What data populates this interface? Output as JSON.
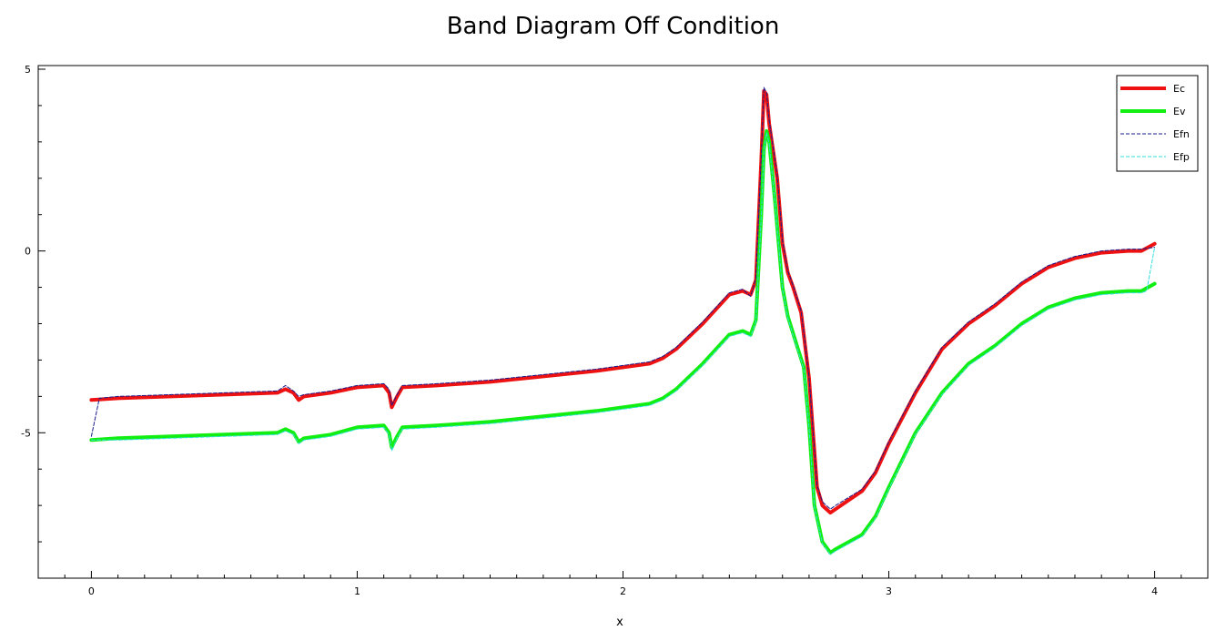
{
  "chart_data": {
    "type": "line",
    "title": "Band Diagram Off Condition",
    "xlabel": "x",
    "ylabel": "",
    "xlim": [
      -0.2,
      4.2
    ],
    "ylim": [
      -9,
      5.1
    ],
    "xticks": [
      0,
      1,
      2,
      3,
      4
    ],
    "yticks": [
      5,
      0,
      -5
    ],
    "grid": false,
    "legend_position": "top-right",
    "series": [
      {
        "name": "Ec",
        "color": "#ee1111",
        "style": "solid-thick",
        "x": [
          0,
          0.1,
          0.3,
          0.5,
          0.7,
          0.73,
          0.76,
          0.78,
          0.8,
          0.9,
          1.0,
          1.1,
          1.12,
          1.13,
          1.15,
          1.17,
          1.3,
          1.5,
          1.7,
          1.9,
          2.1,
          2.15,
          2.2,
          2.3,
          2.4,
          2.45,
          2.48,
          2.5,
          2.52,
          2.53,
          2.54,
          2.55,
          2.58,
          2.6,
          2.62,
          2.64,
          2.67,
          2.7,
          2.73,
          2.75,
          2.78,
          2.8,
          2.9,
          2.95,
          3.0,
          3.1,
          3.2,
          3.3,
          3.4,
          3.5,
          3.6,
          3.7,
          3.8,
          3.9,
          3.95,
          4.0
        ],
        "y": [
          -4.1,
          -4.05,
          -4.0,
          -3.95,
          -3.9,
          -3.8,
          -3.9,
          -4.1,
          -4.0,
          -3.9,
          -3.75,
          -3.7,
          -3.9,
          -4.3,
          -4.0,
          -3.75,
          -3.7,
          -3.6,
          -3.45,
          -3.3,
          -3.1,
          -2.95,
          -2.7,
          -2.0,
          -1.2,
          -1.1,
          -1.2,
          -0.8,
          2.5,
          4.4,
          4.3,
          3.5,
          2.0,
          0.2,
          -0.6,
          -1.0,
          -1.7,
          -3.5,
          -6.5,
          -7.0,
          -7.2,
          -7.1,
          -6.6,
          -6.1,
          -5.3,
          -3.9,
          -2.7,
          -2.0,
          -1.5,
          -0.9,
          -0.45,
          -0.2,
          -0.05,
          0.0,
          0.0,
          0.2
        ]
      },
      {
        "name": "Ev",
        "color": "#11ee11",
        "style": "solid-thick",
        "x": [
          0,
          0.1,
          0.3,
          0.5,
          0.7,
          0.73,
          0.76,
          0.78,
          0.8,
          0.9,
          1.0,
          1.1,
          1.12,
          1.13,
          1.15,
          1.17,
          1.3,
          1.5,
          1.7,
          1.9,
          2.1,
          2.15,
          2.2,
          2.3,
          2.4,
          2.45,
          2.48,
          2.5,
          2.52,
          2.53,
          2.54,
          2.55,
          2.57,
          2.6,
          2.62,
          2.65,
          2.68,
          2.7,
          2.72,
          2.75,
          2.78,
          2.8,
          2.9,
          2.95,
          3.0,
          3.1,
          3.2,
          3.3,
          3.4,
          3.5,
          3.6,
          3.7,
          3.8,
          3.9,
          3.95,
          4.0
        ],
        "y": [
          -5.2,
          -5.15,
          -5.1,
          -5.05,
          -5.0,
          -4.9,
          -5.0,
          -5.25,
          -5.15,
          -5.05,
          -4.85,
          -4.8,
          -5.0,
          -5.4,
          -5.1,
          -4.85,
          -4.8,
          -4.7,
          -4.55,
          -4.4,
          -4.2,
          -4.05,
          -3.8,
          -3.1,
          -2.3,
          -2.2,
          -2.3,
          -1.9,
          1.0,
          2.8,
          3.3,
          3.0,
          1.5,
          -1.0,
          -1.8,
          -2.5,
          -3.2,
          -4.8,
          -7.0,
          -8.0,
          -8.3,
          -8.2,
          -7.8,
          -7.3,
          -6.5,
          -5.0,
          -3.9,
          -3.1,
          -2.6,
          -2.0,
          -1.55,
          -1.3,
          -1.15,
          -1.1,
          -1.1,
          -0.9
        ]
      },
      {
        "name": "Efn",
        "color": "#1a1a8c",
        "style": "dashed-thin",
        "x": [
          0,
          0.03,
          0.1,
          0.3,
          0.5,
          0.7,
          0.73,
          0.76,
          0.78,
          0.8,
          0.9,
          1.0,
          1.1,
          1.12,
          1.13,
          1.15,
          1.17,
          1.3,
          1.5,
          1.7,
          1.9,
          2.1,
          2.15,
          2.2,
          2.3,
          2.4,
          2.45,
          2.48,
          2.5,
          2.52,
          2.53,
          2.54,
          2.55,
          2.58,
          2.6,
          2.62,
          2.64,
          2.67,
          2.7,
          2.73,
          2.75,
          2.78,
          2.8,
          2.9,
          2.95,
          3.0,
          3.1,
          3.2,
          3.3,
          3.4,
          3.5,
          3.6,
          3.7,
          3.8,
          3.9,
          3.95,
          4.0
        ],
        "y": [
          -5.1,
          -4.05,
          -4.0,
          -3.95,
          -3.9,
          -3.85,
          -3.7,
          -3.85,
          -4.0,
          -3.95,
          -3.85,
          -3.7,
          -3.65,
          -3.8,
          -4.25,
          -3.95,
          -3.7,
          -3.65,
          -3.55,
          -3.4,
          -3.25,
          -3.05,
          -2.9,
          -2.65,
          -1.95,
          -1.15,
          -1.05,
          -1.25,
          -0.75,
          2.6,
          4.5,
          4.35,
          3.6,
          2.1,
          0.3,
          -0.55,
          -0.95,
          -1.65,
          -3.45,
          -6.45,
          -6.9,
          -7.1,
          -7.0,
          -6.55,
          -6.05,
          -5.25,
          -3.85,
          -2.65,
          -1.95,
          -1.45,
          -0.85,
          -0.4,
          -0.15,
          0.0,
          0.05,
          0.05,
          0.1
        ]
      },
      {
        "name": "Efp",
        "color": "#33dddd",
        "style": "dashed-thin",
        "x": [
          0,
          0.1,
          0.3,
          0.5,
          0.7,
          0.73,
          0.76,
          0.78,
          0.8,
          0.9,
          1.0,
          1.1,
          1.12,
          1.13,
          1.15,
          1.17,
          1.3,
          1.5,
          1.7,
          1.9,
          2.1,
          2.15,
          2.2,
          2.3,
          2.4,
          2.45,
          2.48,
          2.5,
          2.52,
          2.53,
          2.54,
          2.55,
          2.57,
          2.6,
          2.62,
          2.65,
          2.68,
          2.7,
          2.72,
          2.75,
          2.78,
          2.8,
          2.9,
          2.95,
          3.0,
          3.1,
          3.2,
          3.3,
          3.4,
          3.5,
          3.6,
          3.7,
          3.8,
          3.9,
          3.95,
          3.97,
          4.0
        ],
        "y": [
          -5.2,
          -5.2,
          -5.15,
          -5.1,
          -5.05,
          -4.95,
          -5.05,
          -5.3,
          -5.2,
          -5.1,
          -4.9,
          -4.85,
          -5.05,
          -5.5,
          -5.15,
          -4.9,
          -4.85,
          -4.75,
          -4.6,
          -4.45,
          -4.25,
          -4.1,
          -3.85,
          -3.15,
          -2.35,
          -2.25,
          -2.35,
          -1.95,
          0.95,
          2.75,
          3.25,
          2.95,
          1.45,
          -1.05,
          -1.85,
          -2.55,
          -3.25,
          -4.85,
          -7.05,
          -8.05,
          -8.35,
          -8.25,
          -7.85,
          -7.35,
          -6.55,
          -5.05,
          -3.95,
          -3.15,
          -2.65,
          -2.05,
          -1.6,
          -1.35,
          -1.2,
          -1.15,
          -1.15,
          -1.1,
          0.1
        ]
      }
    ]
  }
}
